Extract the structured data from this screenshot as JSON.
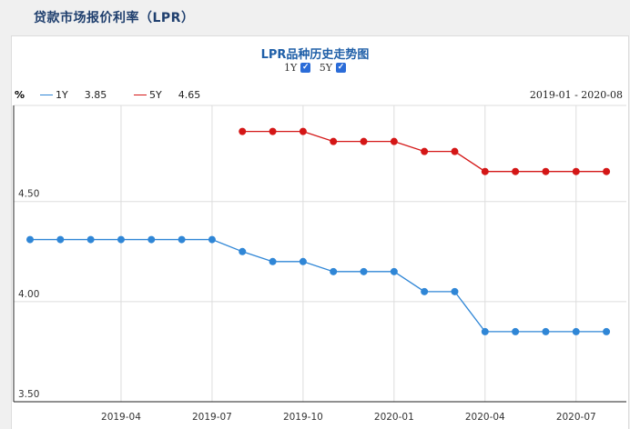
{
  "page": {
    "title": "贷款市场报价利率（LPR）"
  },
  "colors": {
    "series_1y": "#2f86d6",
    "series_5y": "#d41616",
    "title": "#1f3f6e",
    "grid": "#dddddd"
  },
  "chart_data": {
    "type": "line",
    "title": "LPR品种历史走势图",
    "toggles": [
      {
        "label": "1Y",
        "checked": true
      },
      {
        "label": "5Y",
        "checked": true
      }
    ],
    "unit_label": "%",
    "range_label": "2019-01 - 2020-08",
    "x": [
      "2019-01",
      "2019-02",
      "2019-03",
      "2019-04",
      "2019-05",
      "2019-06",
      "2019-07",
      "2019-08",
      "2019-09",
      "2019-10",
      "2019-11",
      "2019-12",
      "2020-01",
      "2020-02",
      "2020-03",
      "2020-04",
      "2020-05",
      "2020-06",
      "2020-07",
      "2020-08"
    ],
    "x_ticks": [
      "2019-04",
      "2019-07",
      "2019-10",
      "2020-01",
      "2020-04",
      "2020-07"
    ],
    "y_ticks": [
      "3.50",
      "4.00",
      "4.50"
    ],
    "ylim": [
      3.5,
      4.98
    ],
    "series": [
      {
        "name": "1Y",
        "legend_value": "3.85",
        "color": "#2f86d6",
        "values": [
          4.31,
          4.31,
          4.31,
          4.31,
          4.31,
          4.31,
          4.31,
          4.25,
          4.2,
          4.2,
          4.15,
          4.15,
          4.15,
          4.05,
          4.05,
          3.85,
          3.85,
          3.85,
          3.85,
          3.85
        ]
      },
      {
        "name": "5Y",
        "legend_value": "4.65",
        "color": "#d41616",
        "values": [
          null,
          null,
          null,
          null,
          null,
          null,
          null,
          4.85,
          4.85,
          4.85,
          4.8,
          4.8,
          4.8,
          4.75,
          4.75,
          4.65,
          4.65,
          4.65,
          4.65,
          4.65
        ]
      }
    ],
    "grid": true
  }
}
